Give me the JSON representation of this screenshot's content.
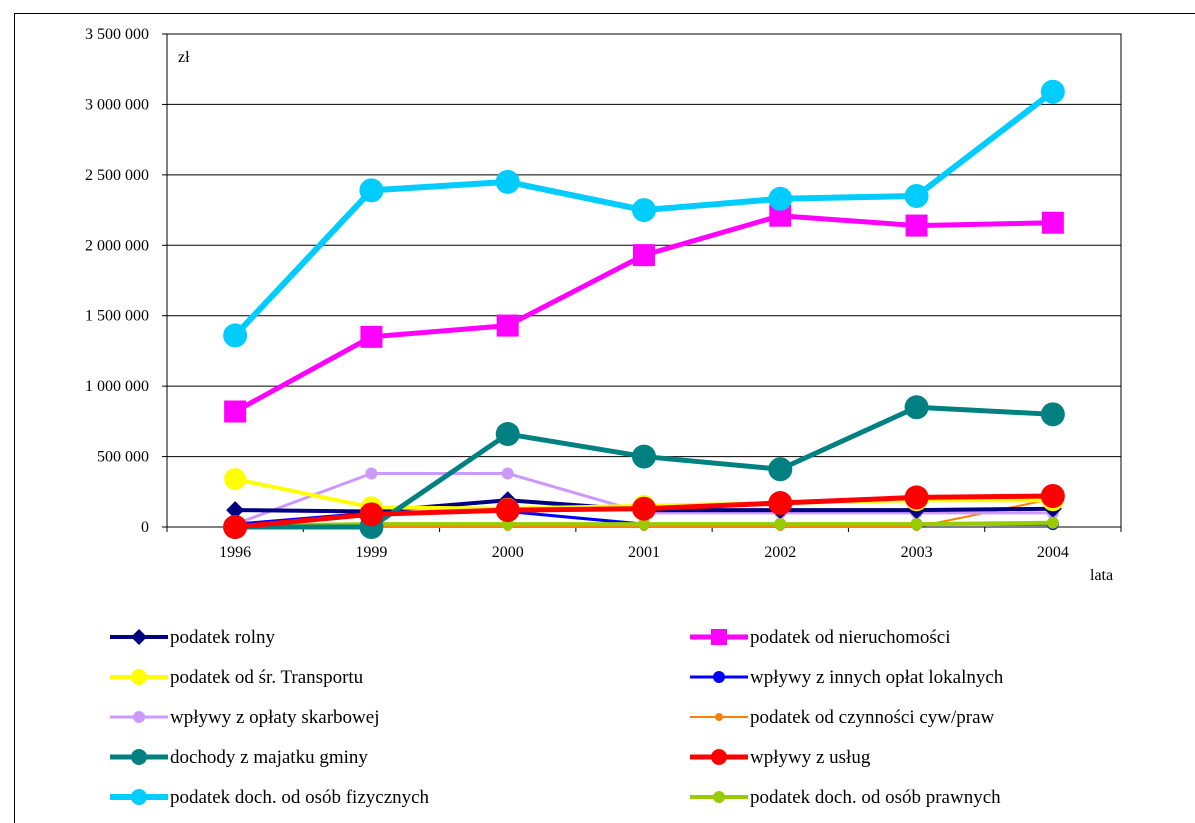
{
  "chart_data": {
    "type": "line",
    "categories": [
      "1996",
      "1999",
      "2000",
      "2001",
      "2002",
      "2003",
      "2004"
    ],
    "ylabel": "zł",
    "xlabel": "lata",
    "ylim": [
      0,
      3500000
    ],
    "yticks": [
      0,
      500000,
      1000000,
      1500000,
      2000000,
      2500000,
      3000000,
      3500000
    ],
    "ytick_labels": [
      "0",
      "500 000",
      "1 000 000",
      "1 500 000",
      "2 000 000",
      "2 500 000",
      "3 000 000",
      "3 500 000"
    ],
    "grid": true,
    "legend_position": "bottom",
    "series": [
      {
        "name": "podatek rolny",
        "color": "#000080",
        "marker": "diamond",
        "values": [
          120000,
          110000,
          190000,
          120000,
          120000,
          120000,
          130000
        ]
      },
      {
        "name": "podatek od nieruchomości",
        "color": "#FF00FF",
        "marker": "square",
        "values": [
          820000,
          1350000,
          1430000,
          1930000,
          2210000,
          2140000,
          2160000
        ]
      },
      {
        "name": "podatek od śr. Transportu",
        "color": "#FFFF00",
        "marker": "circle",
        "values": [
          340000,
          140000,
          130000,
          150000,
          170000,
          190000,
          190000
        ]
      },
      {
        "name": "wpływy z innych opłat lokalnych",
        "color": "#0000FF",
        "marker": "circle",
        "values": [
          20000,
          100000,
          110000,
          20000,
          20000,
          20000,
          20000
        ]
      },
      {
        "name": "wpływy z opłaty skarbowej",
        "color": "#CC99FF",
        "marker": "circle",
        "values": [
          20000,
          380000,
          380000,
          100000,
          100000,
          100000,
          100000
        ]
      },
      {
        "name": "podatek od czynności cyw/praw",
        "color": "#FF8000",
        "marker": "circle",
        "values": [
          0,
          0,
          0,
          0,
          0,
          0,
          200000
        ]
      },
      {
        "name": "dochody z majatku gminy",
        "color": "#008080",
        "marker": "circle",
        "values": [
          0,
          0,
          660000,
          500000,
          410000,
          850000,
          800000
        ]
      },
      {
        "name": "wpływy z usług",
        "color": "#FF0000",
        "marker": "circle",
        "values": [
          0,
          90000,
          120000,
          130000,
          170000,
          210000,
          220000
        ]
      },
      {
        "name": "podatek doch. od osób fizycznych",
        "color": "#00CCFF",
        "marker": "circle",
        "values": [
          1360000,
          2390000,
          2450000,
          2250000,
          2330000,
          2350000,
          3090000
        ]
      },
      {
        "name": "podatek doch. od osób prawnych",
        "color": "#99CC00",
        "marker": "circle",
        "values": [
          10000,
          20000,
          20000,
          20000,
          20000,
          20000,
          30000
        ]
      }
    ]
  }
}
